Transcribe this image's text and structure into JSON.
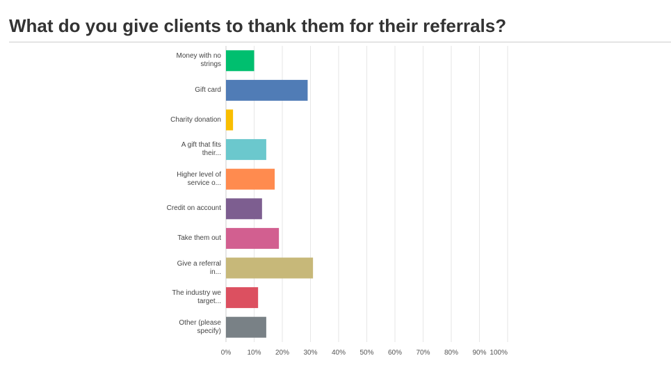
{
  "chart_data": {
    "type": "bar",
    "orientation": "horizontal",
    "title": "What do you give clients to thank them for their referrals?",
    "categories": [
      "Money with no strings",
      "Gift card",
      "Charity donation",
      "A gift that fits their...",
      "Higher level of service o...",
      "Credit on account",
      "Take them out",
      "Give a referral in...",
      "The industry we target...",
      "Other (please specify)"
    ],
    "values": [
      10,
      29,
      2.5,
      14.3,
      17.3,
      12.8,
      18.8,
      30.9,
      11.4,
      14.3
    ],
    "colors": [
      "#00bf6f",
      "#507cb6",
      "#f9be00",
      "#6bc8cd",
      "#ff8b4f",
      "#7d5e90",
      "#d25f90",
      "#c7b879",
      "#dc5060",
      "#798186"
    ],
    "xlim": [
      0,
      100
    ],
    "xticks": [
      {
        "value": 0,
        "label": "0%"
      },
      {
        "value": 10,
        "label": "10%"
      },
      {
        "value": 20,
        "label": "20%"
      },
      {
        "value": 30,
        "label": "30%"
      },
      {
        "value": 40,
        "label": "40%"
      },
      {
        "value": 50,
        "label": "50%"
      },
      {
        "value": 60,
        "label": "60%"
      },
      {
        "value": 70,
        "label": "70%"
      },
      {
        "value": 80,
        "label": "80%"
      },
      {
        "value": 90,
        "label": "90%"
      },
      {
        "value": 100,
        "label": "100%"
      }
    ],
    "grid": true
  }
}
